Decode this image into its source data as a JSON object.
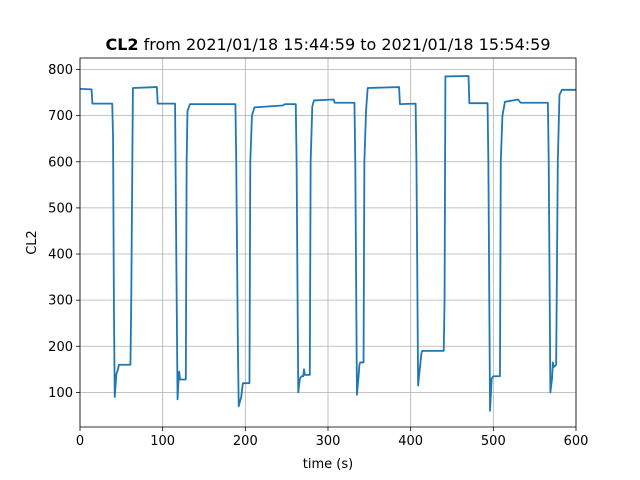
{
  "chart_data": {
    "type": "line",
    "title_bold": "CL2",
    "title_rest": " from 2021/01/18 15:44:59 to 2021/01/18 15:54:59",
    "xlabel": "time (s)",
    "ylabel": "CL2",
    "xlim": [
      0,
      600
    ],
    "ylim": [
      25,
      825
    ],
    "xticks": [
      0,
      100,
      200,
      300,
      400,
      500,
      600
    ],
    "yticks": [
      100,
      200,
      300,
      400,
      500,
      600,
      700,
      800
    ],
    "grid": true,
    "legend": "none",
    "colors": {
      "line": "#1f77b4"
    },
    "series": [
      {
        "values": [
          [
            0,
            758
          ],
          [
            14,
            757
          ],
          [
            15,
            726
          ],
          [
            39,
            726
          ],
          [
            40,
            650
          ],
          [
            41,
            300
          ],
          [
            42,
            90
          ],
          [
            44,
            140
          ],
          [
            46,
            150
          ],
          [
            47,
            160
          ],
          [
            61,
            160
          ],
          [
            62,
            300
          ],
          [
            64,
            760
          ],
          [
            93,
            762
          ],
          [
            94,
            726
          ],
          [
            115,
            726
          ],
          [
            116,
            500
          ],
          [
            118,
            85
          ],
          [
            119,
            120
          ],
          [
            120,
            145
          ],
          [
            121,
            128
          ],
          [
            128,
            128
          ],
          [
            129,
            600
          ],
          [
            130,
            710
          ],
          [
            133,
            725
          ],
          [
            188,
            725
          ],
          [
            189,
            600
          ],
          [
            191,
            200
          ],
          [
            192,
            70
          ],
          [
            195,
            90
          ],
          [
            197,
            120
          ],
          [
            205,
            120
          ],
          [
            206,
            600
          ],
          [
            208,
            700
          ],
          [
            211,
            718
          ],
          [
            245,
            722
          ],
          [
            248,
            725
          ],
          [
            261,
            725
          ],
          [
            262,
            600
          ],
          [
            264,
            100
          ],
          [
            266,
            130
          ],
          [
            268,
            135
          ],
          [
            270,
            135
          ],
          [
            271,
            150
          ],
          [
            272,
            138
          ],
          [
            278,
            138
          ],
          [
            279,
            600
          ],
          [
            281,
            720
          ],
          [
            283,
            733
          ],
          [
            307,
            735
          ],
          [
            308,
            728
          ],
          [
            332,
            728
          ],
          [
            333,
            600
          ],
          [
            335,
            95
          ],
          [
            337,
            135
          ],
          [
            338,
            160
          ],
          [
            339,
            165
          ],
          [
            343,
            165
          ],
          [
            344,
            600
          ],
          [
            346,
            710
          ],
          [
            348,
            760
          ],
          [
            386,
            762
          ],
          [
            387,
            725
          ],
          [
            406,
            726
          ],
          [
            407,
            600
          ],
          [
            409,
            115
          ],
          [
            411,
            150
          ],
          [
            413,
            185
          ],
          [
            414,
            190
          ],
          [
            440,
            190
          ],
          [
            441,
            300
          ],
          [
            442,
            785
          ],
          [
            470,
            786
          ],
          [
            471,
            727
          ],
          [
            493,
            727
          ],
          [
            494,
            600
          ],
          [
            496,
            60
          ],
          [
            498,
            130
          ],
          [
            500,
            135
          ],
          [
            508,
            135
          ],
          [
            509,
            600
          ],
          [
            511,
            700
          ],
          [
            514,
            730
          ],
          [
            530,
            735
          ],
          [
            533,
            728
          ],
          [
            566,
            728
          ],
          [
            567,
            600
          ],
          [
            569,
            100
          ],
          [
            571,
            130
          ],
          [
            572,
            165
          ],
          [
            573,
            155
          ],
          [
            576,
            160
          ],
          [
            578,
            600
          ],
          [
            580,
            745
          ],
          [
            583,
            756
          ],
          [
            600,
            756
          ]
        ]
      }
    ]
  }
}
